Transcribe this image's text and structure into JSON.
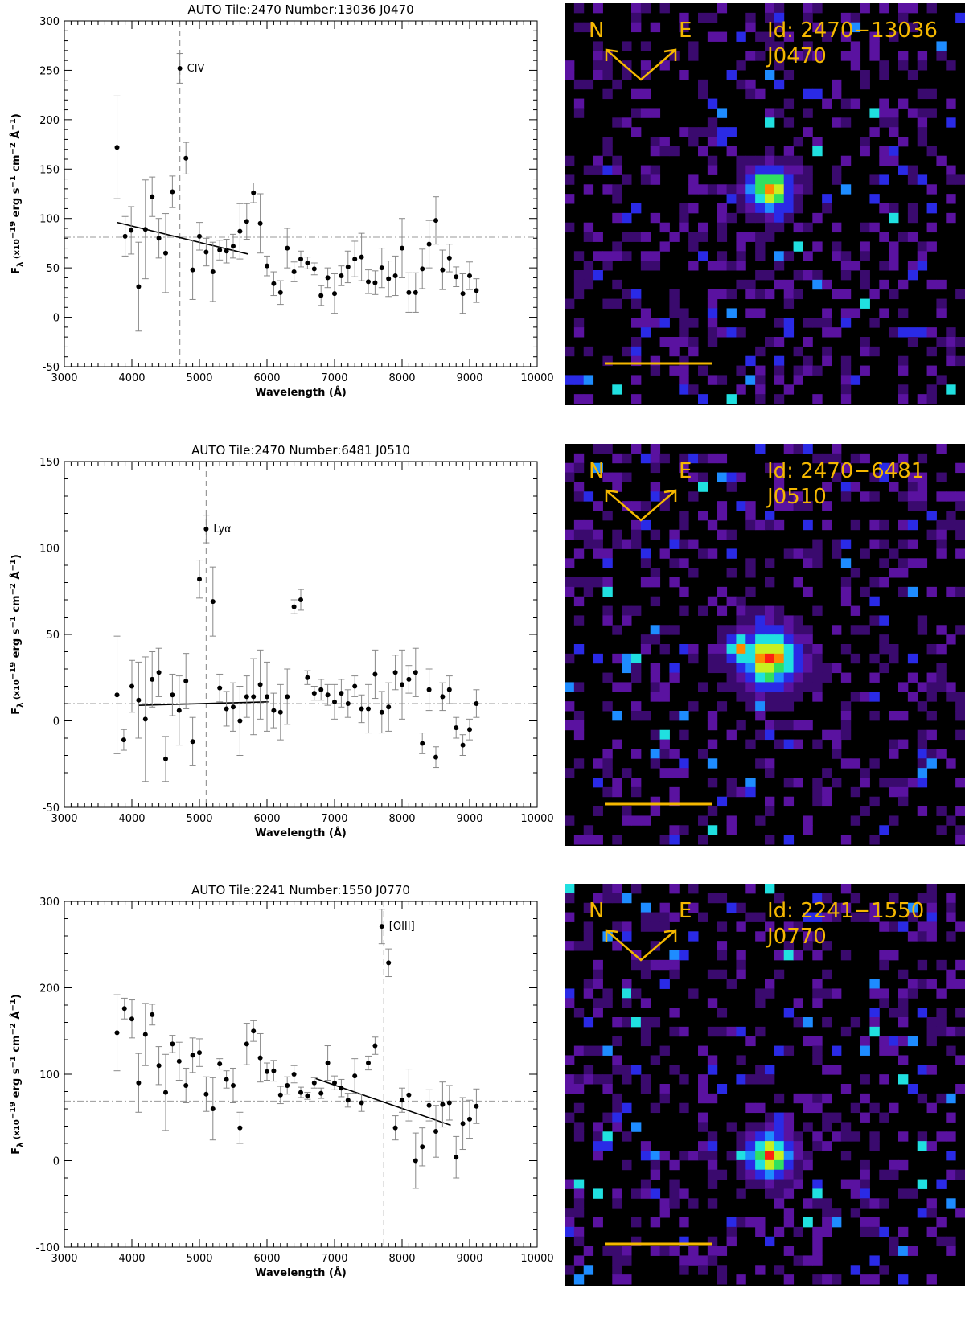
{
  "chart_data": [
    {
      "type": "scatter",
      "title": "AUTO Tile:2470 Number:13036 J0470",
      "xlabel": "Wavelength (Å)",
      "ylabel": "F_λ (x10^-19 erg s^-1 cm^-2 Å^-1)",
      "ylabel_main": "F",
      "ylabel_sub": "λ",
      "ylabel_rest": " (x10",
      "ylabel_exp": "−19",
      "ylabel_tail": " erg s",
      "xlim": [
        3000,
        10000
      ],
      "ylim": [
        -50,
        300
      ],
      "xticks": [
        3000,
        4000,
        5000,
        6000,
        7000,
        8000,
        9000,
        10000
      ],
      "yticks": [
        -50,
        0,
        50,
        100,
        150,
        200,
        250,
        300
      ],
      "line_name": "CIV",
      "line_wavelength": 4710,
      "continuum_level": 81,
      "fit": {
        "x": [
          3780,
          5720
        ],
        "y": [
          96,
          64
        ]
      },
      "points": [
        {
          "x": 3780,
          "y": 172,
          "err": 52
        },
        {
          "x": 3900,
          "y": 82,
          "err": 20
        },
        {
          "x": 3990,
          "y": 88,
          "err": 24
        },
        {
          "x": 4100,
          "y": 31,
          "err": 45
        },
        {
          "x": 4200,
          "y": 89,
          "err": 50
        },
        {
          "x": 4300,
          "y": 122,
          "err": 20
        },
        {
          "x": 4400,
          "y": 80,
          "err": 20
        },
        {
          "x": 4500,
          "y": 65,
          "err": 40
        },
        {
          "x": 4600,
          "y": 127,
          "err": 16
        },
        {
          "x": 4710,
          "y": 252,
          "err": 15
        },
        {
          "x": 4800,
          "y": 161,
          "err": 16
        },
        {
          "x": 4900,
          "y": 48,
          "err": 30
        },
        {
          "x": 5000,
          "y": 82,
          "err": 14
        },
        {
          "x": 5100,
          "y": 66,
          "err": 14
        },
        {
          "x": 5200,
          "y": 46,
          "err": 30
        },
        {
          "x": 5300,
          "y": 68,
          "err": 10
        },
        {
          "x": 5400,
          "y": 67,
          "err": 12
        },
        {
          "x": 5500,
          "y": 72,
          "err": 12
        },
        {
          "x": 5600,
          "y": 87,
          "err": 28
        },
        {
          "x": 5700,
          "y": 97,
          "err": 18
        },
        {
          "x": 5800,
          "y": 126,
          "err": 10
        },
        {
          "x": 5900,
          "y": 95,
          "err": 30
        },
        {
          "x": 6000,
          "y": 52,
          "err": 10
        },
        {
          "x": 6100,
          "y": 34,
          "err": 12
        },
        {
          "x": 6200,
          "y": 25,
          "err": 12
        },
        {
          "x": 6300,
          "y": 70,
          "err": 20
        },
        {
          "x": 6400,
          "y": 46,
          "err": 10
        },
        {
          "x": 6500,
          "y": 59,
          "err": 8
        },
        {
          "x": 6600,
          "y": 55,
          "err": 6
        },
        {
          "x": 6700,
          "y": 49,
          "err": 6
        },
        {
          "x": 6800,
          "y": 22,
          "err": 10
        },
        {
          "x": 6900,
          "y": 40,
          "err": 10
        },
        {
          "x": 7000,
          "y": 24,
          "err": 20
        },
        {
          "x": 7100,
          "y": 42,
          "err": 10
        },
        {
          "x": 7200,
          "y": 51,
          "err": 16
        },
        {
          "x": 7300,
          "y": 59,
          "err": 18
        },
        {
          "x": 7400,
          "y": 61,
          "err": 24
        },
        {
          "x": 7500,
          "y": 36,
          "err": 12
        },
        {
          "x": 7600,
          "y": 35,
          "err": 12
        },
        {
          "x": 7700,
          "y": 50,
          "err": 20
        },
        {
          "x": 7800,
          "y": 39,
          "err": 18
        },
        {
          "x": 7900,
          "y": 42,
          "err": 20
        },
        {
          "x": 8000,
          "y": 70,
          "err": 30
        },
        {
          "x": 8100,
          "y": 25,
          "err": 20
        },
        {
          "x": 8200,
          "y": 25,
          "err": 20
        },
        {
          "x": 8300,
          "y": 49,
          "err": 20
        },
        {
          "x": 8400,
          "y": 74,
          "err": 24
        },
        {
          "x": 8500,
          "y": 98,
          "err": 24
        },
        {
          "x": 8600,
          "y": 48,
          "err": 20
        },
        {
          "x": 8700,
          "y": 60,
          "err": 14
        },
        {
          "x": 8800,
          "y": 41,
          "err": 10
        },
        {
          "x": 8900,
          "y": 24,
          "err": 20
        },
        {
          "x": 9000,
          "y": 42,
          "err": 14
        },
        {
          "x": 9100,
          "y": 27,
          "err": 12
        }
      ]
    },
    {
      "type": "scatter",
      "title": "AUTO Tile:2470 Number:6481 J0510",
      "xlabel": "Wavelength (Å)",
      "ylabel": "F_λ (x10^-19 erg s^-1 cm^-2 Å^-1)",
      "ylabel_main": "F",
      "ylabel_sub": "λ",
      "ylabel_rest": " (x10",
      "ylabel_exp": "−19",
      "ylabel_tail": " erg s",
      "xlim": [
        3000,
        10000
      ],
      "ylim": [
        -50,
        150
      ],
      "xticks": [
        3000,
        4000,
        5000,
        6000,
        7000,
        8000,
        9000,
        10000
      ],
      "yticks": [
        -50,
        0,
        50,
        100,
        150
      ],
      "line_name": "Lyα",
      "line_wavelength": 5100,
      "continuum_level": 10,
      "fit": {
        "x": [
          4100,
          6020
        ],
        "y": [
          9,
          11
        ]
      },
      "points": [
        {
          "x": 3780,
          "y": 15,
          "err": 34
        },
        {
          "x": 3880,
          "y": -11,
          "err": 6
        },
        {
          "x": 4000,
          "y": 20,
          "err": 15
        },
        {
          "x": 4100,
          "y": 12,
          "err": 22
        },
        {
          "x": 4200,
          "y": 1,
          "err": 36
        },
        {
          "x": 4300,
          "y": 24,
          "err": 16
        },
        {
          "x": 4400,
          "y": 28,
          "err": 14
        },
        {
          "x": 4500,
          "y": -22,
          "err": 13
        },
        {
          "x": 4600,
          "y": 15,
          "err": 12
        },
        {
          "x": 4700,
          "y": 6,
          "err": 20
        },
        {
          "x": 4800,
          "y": 23,
          "err": 16
        },
        {
          "x": 4900,
          "y": -12,
          "err": 14
        },
        {
          "x": 5000,
          "y": 82,
          "err": 11
        },
        {
          "x": 5100,
          "y": 111,
          "err": 8
        },
        {
          "x": 5200,
          "y": 69,
          "err": 20
        },
        {
          "x": 5300,
          "y": 19,
          "err": 8
        },
        {
          "x": 5400,
          "y": 7,
          "err": 10
        },
        {
          "x": 5500,
          "y": 8,
          "err": 14
        },
        {
          "x": 5600,
          "y": 0,
          "err": 20
        },
        {
          "x": 5700,
          "y": 14,
          "err": 12
        },
        {
          "x": 5800,
          "y": 14,
          "err": 22
        },
        {
          "x": 5900,
          "y": 21,
          "err": 20
        },
        {
          "x": 6000,
          "y": 14,
          "err": 20
        },
        {
          "x": 6100,
          "y": 6,
          "err": 10
        },
        {
          "x": 6200,
          "y": 5,
          "err": 16
        },
        {
          "x": 6300,
          "y": 14,
          "err": 16
        },
        {
          "x": 6400,
          "y": 66,
          "err": 4
        },
        {
          "x": 6500,
          "y": 70,
          "err": 6
        },
        {
          "x": 6600,
          "y": 25,
          "err": 4
        },
        {
          "x": 6700,
          "y": 16,
          "err": 4
        },
        {
          "x": 6800,
          "y": 18,
          "err": 6
        },
        {
          "x": 6900,
          "y": 15,
          "err": 6
        },
        {
          "x": 7000,
          "y": 11,
          "err": 10
        },
        {
          "x": 7100,
          "y": 16,
          "err": 8
        },
        {
          "x": 7200,
          "y": 10,
          "err": 8
        },
        {
          "x": 7300,
          "y": 20,
          "err": 6
        },
        {
          "x": 7400,
          "y": 7,
          "err": 8
        },
        {
          "x": 7500,
          "y": 7,
          "err": 14
        },
        {
          "x": 7600,
          "y": 27,
          "err": 14
        },
        {
          "x": 7700,
          "y": 5,
          "err": 12
        },
        {
          "x": 7800,
          "y": 8,
          "err": 14
        },
        {
          "x": 7900,
          "y": 28,
          "err": 10
        },
        {
          "x": 8000,
          "y": 21,
          "err": 20
        },
        {
          "x": 8100,
          "y": 24,
          "err": 8
        },
        {
          "x": 8200,
          "y": 28,
          "err": 14
        },
        {
          "x": 8300,
          "y": -13,
          "err": 6
        },
        {
          "x": 8400,
          "y": 18,
          "err": 12
        },
        {
          "x": 8500,
          "y": -21,
          "err": 6
        },
        {
          "x": 8600,
          "y": 14,
          "err": 8
        },
        {
          "x": 8700,
          "y": 18,
          "err": 8
        },
        {
          "x": 8800,
          "y": -4,
          "err": 6
        },
        {
          "x": 8900,
          "y": -14,
          "err": 6
        },
        {
          "x": 9000,
          "y": -5,
          "err": 6
        },
        {
          "x": 9100,
          "y": 10,
          "err": 8
        }
      ]
    },
    {
      "type": "scatter",
      "title": "AUTO Tile:2241 Number:1550 J0770",
      "xlabel": "Wavelength (Å)",
      "ylabel": "F_λ (x10^-19 erg s^-1 cm^-2 Å^-1)",
      "ylabel_main": "F",
      "ylabel_sub": "λ",
      "ylabel_rest": " (x10",
      "ylabel_exp": "−19",
      "ylabel_tail": " erg s",
      "xlim": [
        3000,
        10000
      ],
      "ylim": [
        -100,
        300
      ],
      "xticks": [
        3000,
        4000,
        5000,
        6000,
        7000,
        8000,
        9000,
        10000
      ],
      "yticks": [
        -100,
        0,
        100,
        200,
        300
      ],
      "line_name": "[OIII]",
      "line_wavelength": 7730,
      "continuum_level": 69,
      "fit": {
        "x": [
          6720,
          8720
        ],
        "y": [
          95,
          41
        ]
      },
      "points": [
        {
          "x": 3780,
          "y": 148,
          "err": 44
        },
        {
          "x": 3890,
          "y": 176,
          "err": 12
        },
        {
          "x": 4000,
          "y": 164,
          "err": 22
        },
        {
          "x": 4100,
          "y": 90,
          "err": 34
        },
        {
          "x": 4200,
          "y": 146,
          "err": 36
        },
        {
          "x": 4300,
          "y": 169,
          "err": 12
        },
        {
          "x": 4400,
          "y": 110,
          "err": 22
        },
        {
          "x": 4500,
          "y": 79,
          "err": 44
        },
        {
          "x": 4600,
          "y": 135,
          "err": 10
        },
        {
          "x": 4700,
          "y": 115,
          "err": 22
        },
        {
          "x": 4800,
          "y": 87,
          "err": 20
        },
        {
          "x": 4900,
          "y": 122,
          "err": 20
        },
        {
          "x": 5000,
          "y": 125,
          "err": 16
        },
        {
          "x": 5100,
          "y": 77,
          "err": 20
        },
        {
          "x": 5200,
          "y": 60,
          "err": 36
        },
        {
          "x": 5300,
          "y": 112,
          "err": 6
        },
        {
          "x": 5400,
          "y": 94,
          "err": 10
        },
        {
          "x": 5500,
          "y": 87,
          "err": 20
        },
        {
          "x": 5600,
          "y": 38,
          "err": 18
        },
        {
          "x": 5700,
          "y": 135,
          "err": 24
        },
        {
          "x": 5800,
          "y": 150,
          "err": 12
        },
        {
          "x": 5900,
          "y": 119,
          "err": 28
        },
        {
          "x": 6000,
          "y": 103,
          "err": 10
        },
        {
          "x": 6100,
          "y": 104,
          "err": 12
        },
        {
          "x": 6200,
          "y": 76,
          "err": 10
        },
        {
          "x": 6300,
          "y": 87,
          "err": 10
        },
        {
          "x": 6400,
          "y": 100,
          "err": 10
        },
        {
          "x": 6500,
          "y": 79,
          "err": 6
        },
        {
          "x": 6600,
          "y": 75,
          "err": 4
        },
        {
          "x": 6700,
          "y": 90,
          "err": 6
        },
        {
          "x": 6800,
          "y": 78,
          "err": 6
        },
        {
          "x": 6900,
          "y": 113,
          "err": 20
        },
        {
          "x": 7000,
          "y": 90,
          "err": 8
        },
        {
          "x": 7100,
          "y": 84,
          "err": 10
        },
        {
          "x": 7200,
          "y": 70,
          "err": 8
        },
        {
          "x": 7300,
          "y": 98,
          "err": 20
        },
        {
          "x": 7400,
          "y": 67,
          "err": 10
        },
        {
          "x": 7500,
          "y": 113,
          "err": 8
        },
        {
          "x": 7600,
          "y": 133,
          "err": 10
        },
        {
          "x": 7700,
          "y": 271,
          "err": 20
        },
        {
          "x": 7800,
          "y": 229,
          "err": 16
        },
        {
          "x": 7900,
          "y": 38,
          "err": 14
        },
        {
          "x": 8000,
          "y": 70,
          "err": 14
        },
        {
          "x": 8100,
          "y": 76,
          "err": 30
        },
        {
          "x": 8200,
          "y": 0,
          "err": 32
        },
        {
          "x": 8300,
          "y": 16,
          "err": 22
        },
        {
          "x": 8400,
          "y": 64,
          "err": 18
        },
        {
          "x": 8500,
          "y": 34,
          "err": 30
        },
        {
          "x": 8600,
          "y": 65,
          "err": 26
        },
        {
          "x": 8700,
          "y": 67,
          "err": 20
        },
        {
          "x": 8800,
          "y": 4,
          "err": 24
        },
        {
          "x": 8900,
          "y": 43,
          "err": 30
        },
        {
          "x": 9000,
          "y": 48,
          "err": 22
        },
        {
          "x": 9100,
          "y": 63,
          "err": 20
        }
      ]
    }
  ],
  "thumbnails": [
    {
      "id_text": "Id: 2470−13036",
      "filter_text": "J0470",
      "north": "N",
      "east": "E",
      "seed": 7,
      "peak": "single"
    },
    {
      "id_text": "Id: 2470−6481",
      "filter_text": "J0510",
      "north": "N",
      "east": "E",
      "seed": 23,
      "peak": "double"
    },
    {
      "id_text": "Id: 2241−1550",
      "filter_text": "J0770",
      "north": "N",
      "east": "E",
      "seed": 41,
      "peak": "round"
    }
  ],
  "colors": {
    "compass": "#f5b800",
    "points": "#000000",
    "errorbars": "#888888",
    "refline": "#999999"
  }
}
